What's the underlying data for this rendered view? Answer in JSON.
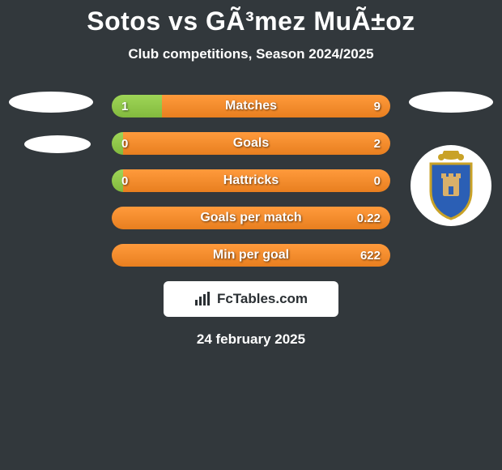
{
  "title": "Sotos vs GÃ³mez MuÃ±oz",
  "subtitle": "Club competitions, Season 2024/2025",
  "date": "24 february 2025",
  "footer_brand": "FcTables.com",
  "colors": {
    "background": "#32383c",
    "left_bar": "#8fc94a",
    "right_bar": "#f28a2b",
    "text": "#ffffff"
  },
  "bars": [
    {
      "label": "Matches",
      "left": "1",
      "right": "9",
      "left_pct": 18
    },
    {
      "label": "Goals",
      "left": "0",
      "right": "2",
      "left_pct": 4
    },
    {
      "label": "Hattricks",
      "left": "0",
      "right": "0",
      "left_pct": 4
    },
    {
      "label": "Goals per match",
      "left": "",
      "right": "0.22",
      "left_pct": 0
    },
    {
      "label": "Min per goal",
      "left": "",
      "right": "622",
      "left_pct": 0
    }
  ]
}
